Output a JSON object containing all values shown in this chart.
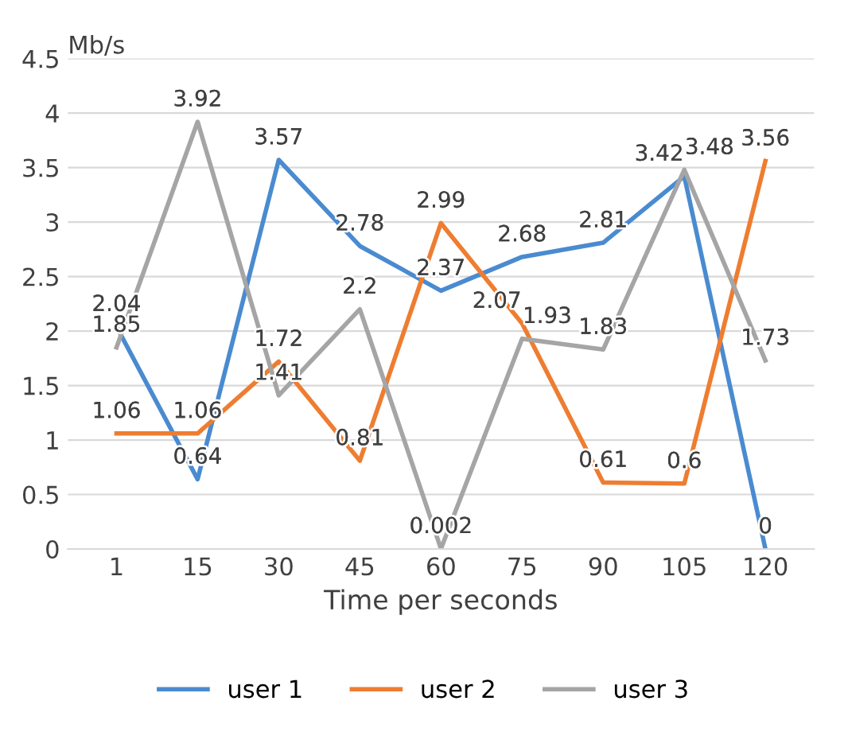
{
  "chart_data": {
    "type": "line",
    "xlabel": "Time per seconds",
    "ylabel": "Mb/s",
    "categories": [
      "1",
      "15",
      "30",
      "45",
      "60",
      "75",
      "90",
      "105",
      "120"
    ],
    "series": [
      {
        "name": "user 1",
        "color": "#4a8bd0",
        "values": [
          2.04,
          0.64,
          3.57,
          2.78,
          2.37,
          2.68,
          2.81,
          3.42,
          0
        ]
      },
      {
        "name": "user 2",
        "color": "#ee7d31",
        "values": [
          1.06,
          1.06,
          1.72,
          0.81,
          2.99,
          2.07,
          0.61,
          0.6,
          3.56
        ]
      },
      {
        "name": "user 3",
        "color": "#a5a5a5",
        "values": [
          1.85,
          3.92,
          1.41,
          2.2,
          0.002,
          1.93,
          1.83,
          3.48,
          1.73
        ]
      }
    ],
    "ylim": [
      0,
      4.5
    ],
    "yticks": [
      {
        "value": 0,
        "label": "0"
      },
      0.5,
      {
        "value": 1,
        "label": "1"
      },
      1.5,
      {
        "value": 2,
        "label": "2"
      },
      2.5,
      {
        "value": 3,
        "label": "3"
      },
      3.5,
      {
        "value": 4,
        "label": "4"
      },
      4.5
    ],
    "grid": "y",
    "legend": "bottom",
    "data_labels": true,
    "marker": "none",
    "line_style": "solid"
  }
}
